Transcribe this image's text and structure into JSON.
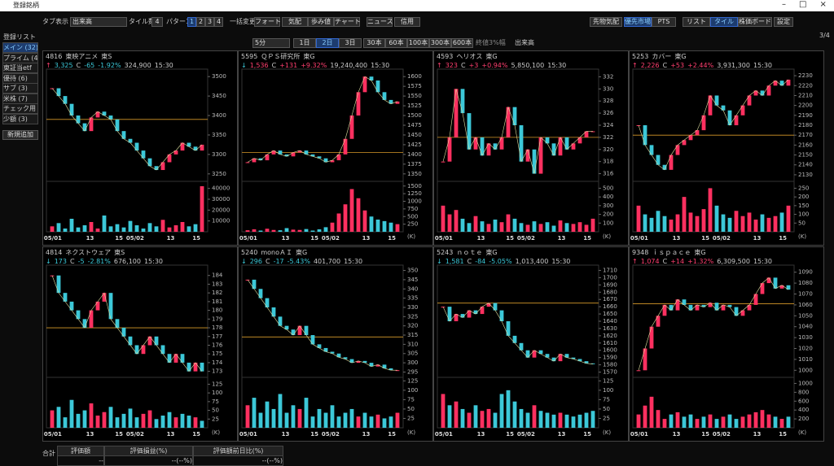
{
  "window": {
    "title": "登録銘柄"
  },
  "toolbar": {
    "tab_label": "タブ表示",
    "tab_value": "出来高",
    "tile_label": "タイル数",
    "tile_value": "4",
    "pattern_label": "パターン",
    "patterns": [
      "1",
      "2",
      "3",
      "4"
    ],
    "bulk_label": "一括変更",
    "buttons": [
      "フォート",
      "気配",
      "歩み値",
      "チャート",
      "ニュース",
      "信用"
    ],
    "right_buttons": [
      "先物気配",
      "優先市場",
      "PTS",
      "リスト",
      "タイル",
      "株価ボード",
      "設定"
    ]
  },
  "toolbar2": {
    "interval": "5分",
    "ranges": [
      "1日",
      "2日",
      "3日"
    ],
    "bars": [
      "30本",
      "60本",
      "100本",
      "300本",
      "600本"
    ],
    "check_close": "終値3%幅",
    "check_volume": "出来高",
    "page": "3/4"
  },
  "sidebar": {
    "title": "登録リスト",
    "items": [
      "メイン (32)",
      "プライム (4",
      "東証当etf",
      "優待 (6)",
      "サブ (3)",
      "米株 (7)",
      "チェック用 (",
      "少額 (3)"
    ],
    "add": "新規追加"
  },
  "footer": {
    "total": "合計",
    "headers": [
      "評価額",
      "評価損益(%)",
      "評価額前日比(%)"
    ],
    "values": [
      "--",
      "--(--%)",
      "--(--%)"
    ]
  },
  "tiles": [
    {
      "code": "4816",
      "name": "東映アニメ",
      "market": "東S",
      "arrow": "↑",
      "price": "3,325",
      "flag": "C",
      "change": "-65",
      "pct": "-1.92%",
      "volume": "324,900",
      "time": "15:30",
      "dir": "down",
      "ylim": [
        3235,
        3515
      ],
      "yticks": [
        3500,
        3450,
        3400,
        3350,
        3300,
        3250
      ],
      "ref": 3390,
      "vlim": [
        0,
        45000
      ],
      "vticks": [
        40000,
        30000,
        20000,
        10000
      ],
      "xlabels": [
        "05/01",
        "13",
        "15",
        "05/02",
        "13",
        "15"
      ],
      "close": [
        3470,
        3450,
        3430,
        3400,
        3380,
        3360,
        3395,
        3410,
        3400,
        3390,
        3360,
        3340,
        3330,
        3310,
        3290,
        3270,
        3260,
        3280,
        3300,
        3310,
        3330,
        3320,
        3310,
        3325
      ],
      "vol": [
        5000,
        8000,
        3000,
        12000,
        4000,
        6000,
        9000,
        3000,
        15000,
        5000,
        7000,
        4000,
        10000,
        6000,
        3000,
        8000,
        5000,
        11000,
        4000,
        6000,
        9000,
        5000,
        7000,
        42000
      ]
    },
    {
      "code": "5595",
      "name": "ＱＰＳ研究所",
      "market": "東G",
      "arrow": "↓",
      "price": "1,536",
      "flag": "C",
      "change": "+131",
      "pct": "+9.32%",
      "volume": "19,240,400",
      "time": "15:30",
      "dir": "up",
      "ylim": [
        1335,
        1615
      ],
      "yticks": [
        1600,
        1575,
        1550,
        1525,
        1500,
        1475,
        1450,
        1425,
        1400,
        1375,
        1350
      ],
      "ref": 1405,
      "vlim": [
        0,
        1600
      ],
      "vticks": [
        1500,
        1250,
        1000,
        750,
        500,
        250
      ],
      "vunit": "(K)",
      "xlabels": [
        "05/01",
        "13",
        "15",
        "05/02",
        "13",
        "15"
      ],
      "close": [
        1380,
        1390,
        1385,
        1400,
        1410,
        1400,
        1395,
        1405,
        1410,
        1400,
        1395,
        1390,
        1380,
        1385,
        1400,
        1440,
        1500,
        1560,
        1600,
        1590,
        1560,
        1540,
        1530,
        1536
      ],
      "vol": [
        50,
        80,
        40,
        100,
        60,
        50,
        120,
        70,
        60,
        90,
        40,
        80,
        150,
        300,
        600,
        900,
        1400,
        1100,
        700,
        500,
        400,
        350,
        300,
        250
      ]
    },
    {
      "code": "4593",
      "name": "ヘリオス",
      "market": "東G",
      "arrow": "↑",
      "price": "323",
      "flag": "C",
      "change": "+3",
      "pct": "+0.94%",
      "volume": "5,850,100",
      "time": "15:30",
      "dir": "up",
      "ylim": [
        315,
        333
      ],
      "yticks": [
        332,
        330,
        328,
        326,
        324,
        322,
        320,
        318,
        316
      ],
      "ref": 322,
      "vlim": [
        0,
        560
      ],
      "vticks": [
        500,
        400,
        300,
        200,
        100
      ],
      "vunit": "(K)",
      "xlabels": [
        "05/01",
        "13",
        "15",
        "05/02",
        "13",
        "15"
      ],
      "close": [
        318,
        322,
        330,
        326,
        320,
        322,
        319,
        321,
        320,
        322,
        327,
        324,
        318,
        320,
        316,
        322,
        321,
        319,
        322,
        320,
        321,
        322,
        323,
        323
      ],
      "vol": [
        300,
        200,
        250,
        150,
        100,
        180,
        120,
        90,
        140,
        110,
        200,
        150,
        100,
        80,
        120,
        90,
        110,
        70,
        130,
        100,
        90,
        110,
        80,
        150
      ]
    },
    {
      "code": "5253",
      "name": "カバー",
      "market": "東G",
      "arrow": "↑",
      "price": "2,226",
      "flag": "C",
      "change": "+53",
      "pct": "+2.44%",
      "volume": "3,931,300",
      "time": "15:30",
      "dir": "up",
      "ylim": [
        2125,
        2235
      ],
      "yticks": [
        2230,
        2220,
        2210,
        2200,
        2190,
        2180,
        2170,
        2160,
        2150,
        2140,
        2130
      ],
      "ref": 2170,
      "vlim": [
        0,
        280
      ],
      "vticks": [
        250,
        200,
        150,
        100,
        50
      ],
      "vunit": "(K)",
      "xlabels": [
        "05/01",
        "13",
        "15",
        "05/02",
        "13",
        "15"
      ],
      "close": [
        2180,
        2160,
        2150,
        2140,
        2135,
        2150,
        2160,
        2165,
        2170,
        2175,
        2190,
        2210,
        2200,
        2195,
        2180,
        2190,
        2200,
        2210,
        2215,
        2210,
        2220,
        2225,
        2220,
        2226
      ],
      "vol": [
        150,
        100,
        80,
        120,
        90,
        70,
        100,
        200,
        110,
        90,
        130,
        250,
        150,
        100,
        80,
        120,
        90,
        110,
        70,
        100,
        80,
        90,
        110,
        150
      ]
    },
    {
      "code": "4814",
      "name": "ネクストウェア",
      "market": "東S",
      "arrow": "↓",
      "price": "173",
      "flag": "C",
      "change": "-5",
      "pct": "-2.81%",
      "volume": "676,100",
      "time": "15:30",
      "dir": "down",
      "ylim": [
        172.5,
        185
      ],
      "yticks": [
        184,
        183,
        182,
        181,
        180,
        179,
        178,
        177,
        176,
        175,
        174,
        173
      ],
      "ref": 178,
      "vlim": [
        0,
        140
      ],
      "vticks": [
        125,
        100,
        75,
        50,
        25
      ],
      "vunit": "(K)",
      "xlabels": [
        "05/01",
        "13",
        "15",
        "05/02",
        "13",
        "15"
      ],
      "close": [
        184,
        182,
        181,
        180,
        179,
        178,
        180,
        181,
        182,
        179,
        178,
        177,
        176,
        175,
        176,
        177,
        176,
        175,
        174,
        175,
        174,
        173,
        174,
        173
      ],
      "vol": [
        50,
        60,
        30,
        80,
        40,
        50,
        70,
        35,
        45,
        60,
        30,
        40,
        55,
        30,
        40,
        50,
        25,
        35,
        45,
        30,
        40,
        35,
        30,
        20
      ]
    },
    {
      "code": "5240",
      "name": "monoＡＩ",
      "market": "東G",
      "arrow": "↓",
      "price": "296",
      "flag": "C",
      "change": "-17",
      "pct": "-5.43%",
      "volume": "401,700",
      "time": "15:30",
      "dir": "down",
      "ylim": [
        293,
        352
      ],
      "yticks": [
        350,
        345,
        340,
        335,
        330,
        325,
        320,
        315,
        310,
        305,
        300,
        295
      ],
      "ref": 314,
      "vlim": [
        0,
        130
      ],
      "vticks": [
        125,
        100,
        75,
        50,
        25
      ],
      "vunit": "(K)",
      "xlabels": [
        "05/01",
        "13",
        "15",
        "05/02",
        "13",
        "15"
      ],
      "close": [
        345,
        340,
        335,
        330,
        325,
        320,
        318,
        315,
        320,
        315,
        310,
        308,
        306,
        305,
        303,
        302,
        300,
        301,
        300,
        298,
        299,
        297,
        296,
        296
      ],
      "vol": [
        60,
        80,
        40,
        70,
        50,
        90,
        40,
        60,
        50,
        80,
        30,
        50,
        40,
        60,
        30,
        40,
        50,
        30,
        40,
        30,
        35,
        25,
        30,
        40
      ]
    },
    {
      "code": "5243",
      "name": "ｎｏｔｅ",
      "market": "東G",
      "arrow": "↓",
      "price": "1,581",
      "flag": "C",
      "change": "-84",
      "pct": "-5.05%",
      "volume": "1,013,400",
      "time": "15:30",
      "dir": "down",
      "ylim": [
        1565,
        1715
      ],
      "yticks": [
        1710,
        1700,
        1690,
        1680,
        1670,
        1660,
        1650,
        1640,
        1630,
        1620,
        1610,
        1600,
        1590,
        1580,
        1570
      ],
      "ref": 1665,
      "vlim": [
        0,
        130
      ],
      "vticks": [
        125,
        100,
        75,
        50,
        25
      ],
      "vunit": "(K)",
      "xlabels": [
        "05/01",
        "13",
        "15",
        "05/02",
        "13",
        "15"
      ],
      "close": [
        1660,
        1640,
        1650,
        1645,
        1655,
        1650,
        1660,
        1665,
        1655,
        1640,
        1620,
        1610,
        1600,
        1590,
        1600,
        1595,
        1590,
        1585,
        1595,
        1590,
        1588,
        1585,
        1582,
        1581
      ],
      "vol": [
        90,
        60,
        70,
        50,
        40,
        60,
        45,
        50,
        40,
        90,
        100,
        70,
        50,
        40,
        60,
        45,
        40,
        35,
        40,
        35,
        30,
        35,
        40,
        45
      ]
    },
    {
      "code": "9348",
      "name": "ｉｓｐａｃｅ",
      "market": "東G",
      "arrow": "↑",
      "price": "1,074",
      "flag": "C",
      "change": "+14",
      "pct": "+1.32%",
      "volume": "6,309,500",
      "time": "15:30",
      "dir": "up",
      "ylim": [
        995,
        1095
      ],
      "yticks": [
        1090,
        1080,
        1070,
        1060,
        1050,
        1040,
        1030,
        1020,
        1010,
        1000
      ],
      "ref": 1061,
      "vlim": [
        0,
        1100
      ],
      "vticks": [
        1000,
        800,
        600,
        400,
        200
      ],
      "vunit": "(K)",
      "xlabels": [
        "05/01",
        "13",
        "15",
        "05/02",
        "13",
        "15"
      ],
      "close": [
        1000,
        1020,
        1040,
        1050,
        1060,
        1055,
        1065,
        1060,
        1055,
        1060,
        1058,
        1062,
        1055,
        1060,
        1058,
        1050,
        1055,
        1060,
        1070,
        1080,
        1085,
        1075,
        1078,
        1074
      ],
      "vol": [
        300,
        500,
        700,
        400,
        200,
        300,
        350,
        250,
        300,
        200,
        250,
        300,
        200,
        250,
        300,
        200,
        250,
        300,
        350,
        400,
        300,
        250,
        200,
        250
      ]
    }
  ]
}
